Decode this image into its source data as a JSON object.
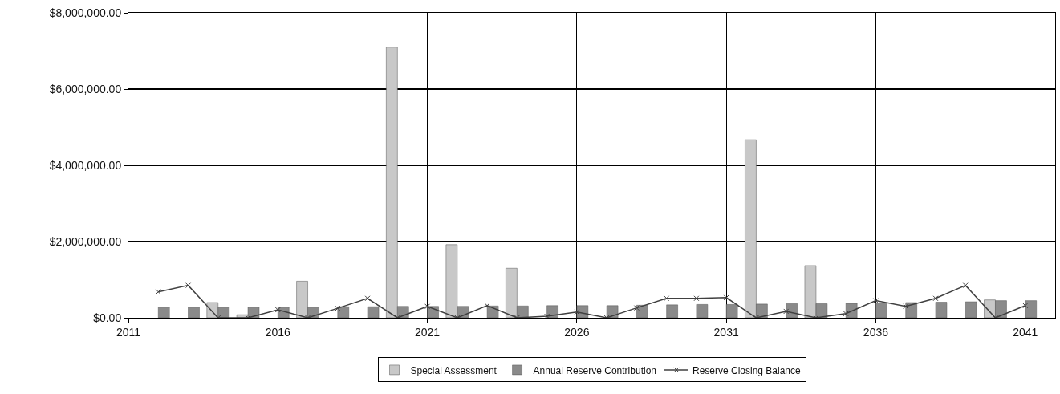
{
  "chart_data": {
    "type": "bar",
    "x": [
      2012,
      2013,
      2014,
      2015,
      2016,
      2017,
      2018,
      2019,
      2020,
      2021,
      2022,
      2023,
      2024,
      2025,
      2026,
      2027,
      2028,
      2029,
      2030,
      2031,
      2032,
      2033,
      2034,
      2035,
      2036,
      2037,
      2038,
      2039,
      2040,
      2041
    ],
    "series": [
      {
        "name": "Special Assessment",
        "color": "#c8c8c8",
        "values": [
          null,
          null,
          400000,
          80000,
          null,
          960000,
          null,
          null,
          7100000,
          null,
          1920000,
          null,
          1300000,
          null,
          null,
          null,
          null,
          null,
          null,
          null,
          4670000,
          null,
          1370000,
          null,
          null,
          null,
          null,
          null,
          470000,
          null
        ]
      },
      {
        "name": "Annual Reserve Contribution",
        "color": "#8a8a8a",
        "values": [
          280000,
          280000,
          280000,
          280000,
          280000,
          280000,
          290000,
          290000,
          300000,
          300000,
          300000,
          310000,
          310000,
          320000,
          320000,
          320000,
          330000,
          340000,
          350000,
          350000,
          360000,
          370000,
          370000,
          380000,
          390000,
          400000,
          410000,
          420000,
          450000,
          450000
        ]
      },
      {
        "name": "Reserve Closing Balance",
        "type": "line",
        "color": "#404040",
        "marker": "cross",
        "values": [
          680000,
          850000,
          0,
          0,
          210000,
          0,
          250000,
          510000,
          0,
          300000,
          0,
          320000,
          0,
          40000,
          150000,
          0,
          260000,
          510000,
          510000,
          530000,
          0,
          170000,
          0,
          110000,
          450000,
          300000,
          510000,
          850000,
          0,
          320000
        ]
      }
    ],
    "xlim": [
      2011,
      2042
    ],
    "xticks": [
      2011,
      2016,
      2021,
      2026,
      2031,
      2036,
      2041
    ],
    "ylim": [
      0,
      8000000
    ],
    "yticks": [
      {
        "value": 0,
        "label": "$0.00"
      },
      {
        "value": 2000000,
        "label": "$2,000,000.00"
      },
      {
        "value": 4000000,
        "label": "$4,000,000.00"
      },
      {
        "value": 6000000,
        "label": "$6,000,000.00"
      },
      {
        "value": 8000000,
        "label": "$8,000,000.00"
      }
    ],
    "grid": true,
    "legend": "bottom",
    "line_style": "solid"
  }
}
